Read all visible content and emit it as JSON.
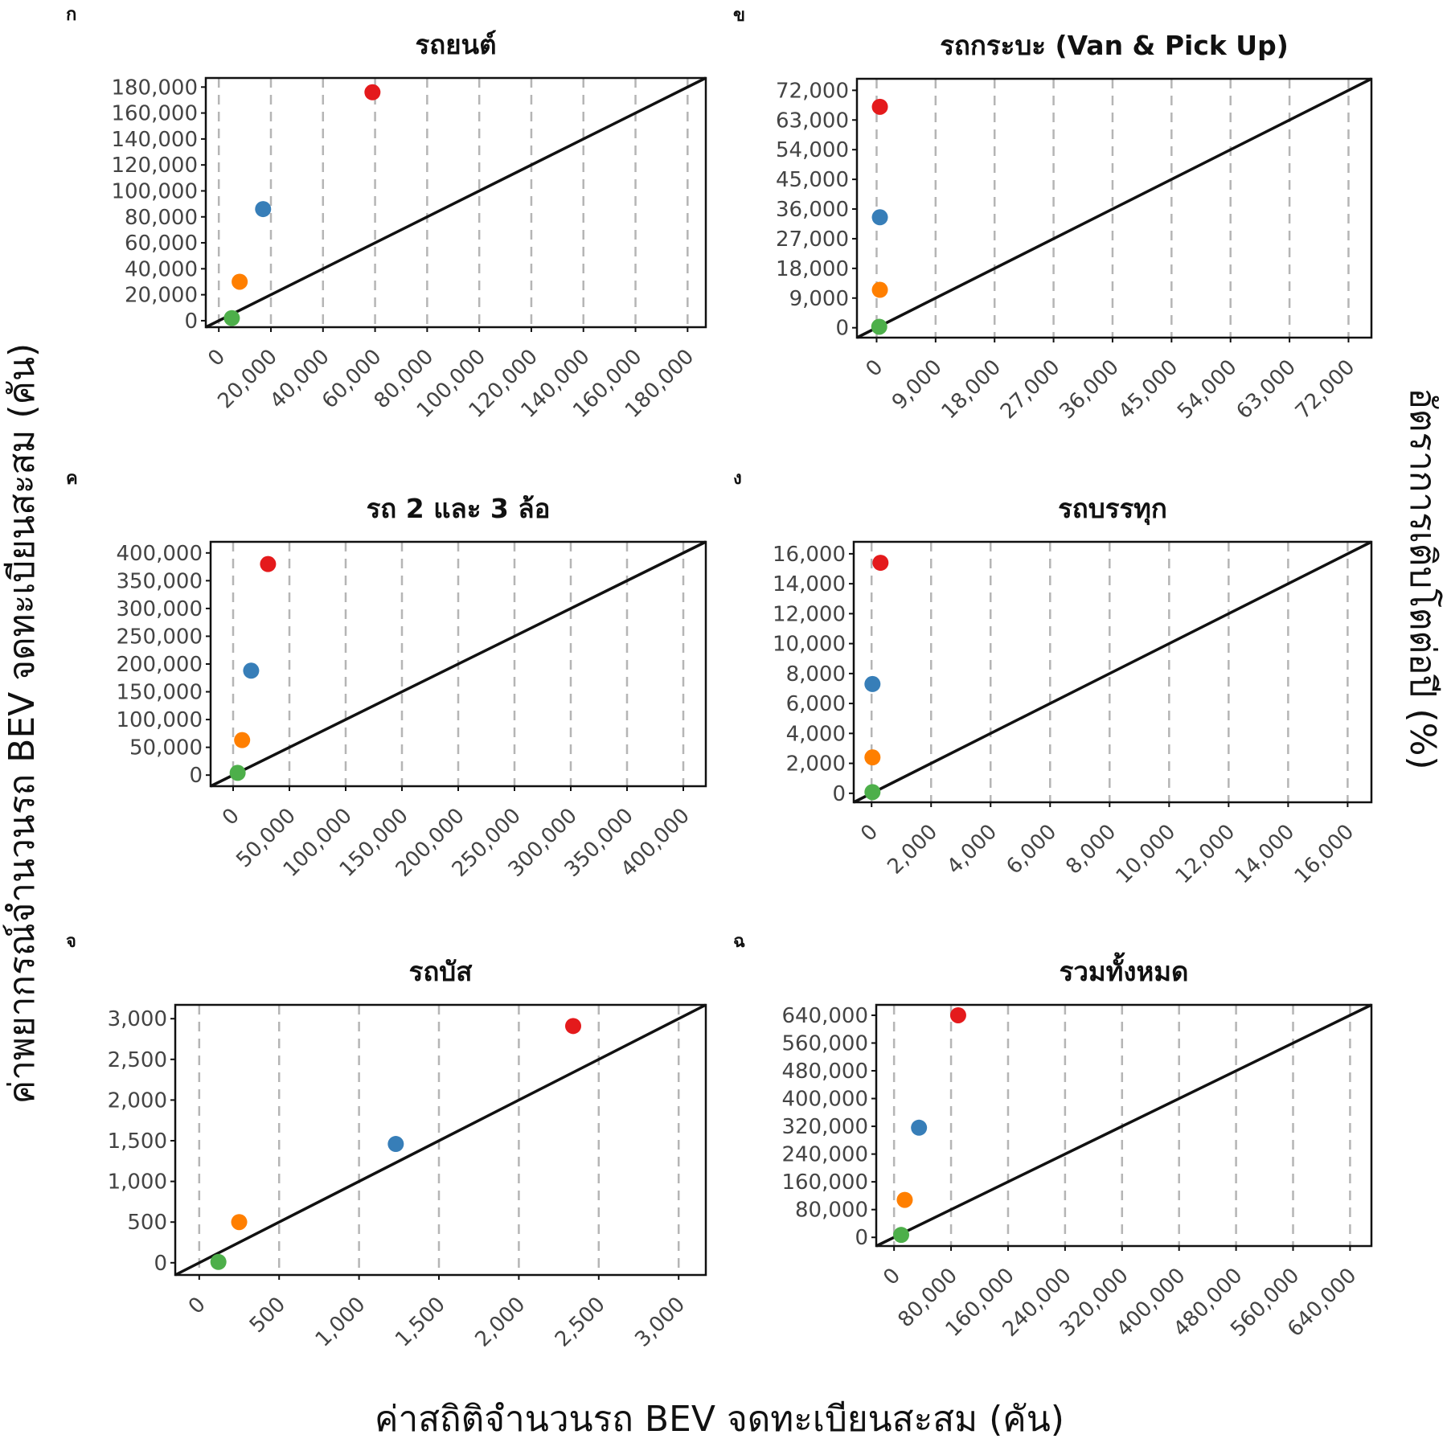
{
  "figure": {
    "xlabel": "ค่าสถิติจำนวนรถ BEV จดทะเบียนสะสม (คัน)",
    "ylabel": "ค่าพยากรณ์จำนวนรถ BEV จดทะเบียนสะสม (คัน)",
    "right_label": "อัตราการเติบโตต่อปี (%)",
    "colors": [
      "#4daf4a",
      "#ff7f00",
      "#377eb8",
      "#e41a1c"
    ]
  },
  "chart_data": [
    {
      "type": "scatter",
      "panel": "ก",
      "title": "รถยนต์",
      "xlim": [
        -5000,
        187000
      ],
      "ylim": [
        -5000,
        187000
      ],
      "ticks": [
        0,
        20000,
        40000,
        60000,
        80000,
        100000,
        120000,
        140000,
        160000,
        180000
      ],
      "tick_labels": [
        "0",
        "20,000",
        "40,000",
        "60,000",
        "80,000",
        "100,000",
        "120,000",
        "140,000",
        "160,000",
        "180,000"
      ],
      "points": [
        {
          "x": 5000,
          "y": 2000,
          "color": "#4daf4a"
        },
        {
          "x": 8000,
          "y": 30000,
          "color": "#ff7f00"
        },
        {
          "x": 17000,
          "y": 86000,
          "color": "#377eb8"
        },
        {
          "x": 59000,
          "y": 176000,
          "color": "#e41a1c"
        }
      ],
      "diagonal": true
    },
    {
      "type": "scatter",
      "panel": "ข",
      "title": "รถกระบะ (Van & Pick Up)",
      "xlim": [
        -3000,
        75500
      ],
      "ylim": [
        -3000,
        75500
      ],
      "ticks": [
        0,
        9000,
        18000,
        27000,
        36000,
        45000,
        54000,
        63000,
        72000
      ],
      "tick_labels": [
        "0",
        "9,000",
        "18,000",
        "27,000",
        "36,000",
        "45,000",
        "54,000",
        "63,000",
        "72,000"
      ],
      "points": [
        {
          "x": 400,
          "y": 300,
          "color": "#4daf4a"
        },
        {
          "x": 500,
          "y": 11500,
          "color": "#ff7f00"
        },
        {
          "x": 500,
          "y": 33500,
          "color": "#377eb8"
        },
        {
          "x": 500,
          "y": 67000,
          "color": "#e41a1c"
        }
      ],
      "diagonal": true
    },
    {
      "type": "scatter",
      "panel": "ค",
      "title": "รถ 2 และ 3 ล้อ",
      "xlim": [
        -20000,
        420000
      ],
      "ylim": [
        -20000,
        420000
      ],
      "ticks": [
        0,
        50000,
        100000,
        150000,
        200000,
        250000,
        300000,
        350000,
        400000
      ],
      "tick_labels": [
        "0",
        "50,000",
        "100,000",
        "150,000",
        "200,000",
        "250,000",
        "300,000",
        "350,000",
        "400,000"
      ],
      "points": [
        {
          "x": 4000,
          "y": 4000,
          "color": "#4daf4a"
        },
        {
          "x": 8000,
          "y": 63000,
          "color": "#ff7f00"
        },
        {
          "x": 16000,
          "y": 188000,
          "color": "#377eb8"
        },
        {
          "x": 31000,
          "y": 380000,
          "color": "#e41a1c"
        }
      ],
      "diagonal": true
    },
    {
      "type": "scatter",
      "panel": "ง",
      "title": "รถบรรทุก",
      "xlim": [
        -600,
        16800
      ],
      "ylim": [
        -600,
        16800
      ],
      "ticks": [
        0,
        2000,
        4000,
        6000,
        8000,
        10000,
        12000,
        14000,
        16000
      ],
      "tick_labels": [
        "0",
        "2,000",
        "4,000",
        "6,000",
        "8,000",
        "10,000",
        "12,000",
        "14,000",
        "16,000"
      ],
      "points": [
        {
          "x": 30,
          "y": 80,
          "color": "#4daf4a"
        },
        {
          "x": 30,
          "y": 2400,
          "color": "#ff7f00"
        },
        {
          "x": 30,
          "y": 7300,
          "color": "#377eb8"
        },
        {
          "x": 300,
          "y": 15400,
          "color": "#e41a1c"
        }
      ],
      "diagonal": true
    },
    {
      "type": "scatter",
      "panel": "จ",
      "title": "รถบัส",
      "xlim": [
        -150,
        3170
      ],
      "ylim": [
        -150,
        3170
      ],
      "ticks": [
        0,
        500,
        1000,
        1500,
        2000,
        2500,
        3000
      ],
      "tick_labels": [
        "0",
        "500",
        "1,000",
        "1,500",
        "2,000",
        "2,500",
        "3,000"
      ],
      "points": [
        {
          "x": 120,
          "y": 10,
          "color": "#4daf4a"
        },
        {
          "x": 250,
          "y": 500,
          "color": "#ff7f00"
        },
        {
          "x": 1230,
          "y": 1460,
          "color": "#377eb8"
        },
        {
          "x": 2340,
          "y": 2910,
          "color": "#e41a1c"
        }
      ],
      "diagonal": true
    },
    {
      "type": "scatter",
      "panel": "ฉ",
      "title": "รวมทั้งหมด",
      "xlim": [
        -25000,
        670000
      ],
      "ylim": [
        -25000,
        670000
      ],
      "ticks": [
        0,
        80000,
        160000,
        240000,
        320000,
        400000,
        480000,
        560000,
        640000
      ],
      "tick_labels": [
        "0",
        "80,000",
        "160,000",
        "240,000",
        "320,000",
        "400,000",
        "480,000",
        "560,000",
        "640,000"
      ],
      "points": [
        {
          "x": 10000,
          "y": 7000,
          "color": "#4daf4a"
        },
        {
          "x": 15000,
          "y": 108000,
          "color": "#ff7f00"
        },
        {
          "x": 35000,
          "y": 316000,
          "color": "#377eb8"
        },
        {
          "x": 90000,
          "y": 640000,
          "color": "#e41a1c"
        }
      ],
      "diagonal": true
    }
  ]
}
